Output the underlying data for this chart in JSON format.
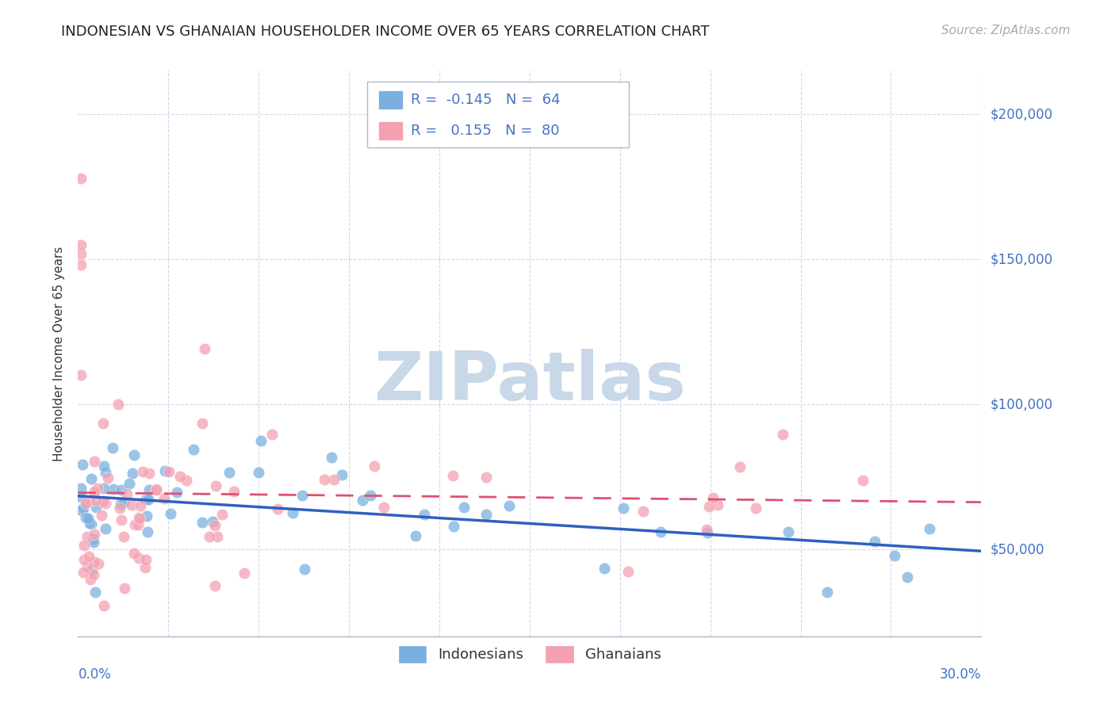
{
  "title": "INDONESIAN VS GHANAIAN HOUSEHOLDER INCOME OVER 65 YEARS CORRELATION CHART",
  "source": "Source: ZipAtlas.com",
  "ylabel": "Householder Income Over 65 years",
  "y_ticks": [
    50000,
    100000,
    150000,
    200000
  ],
  "y_tick_labels": [
    "$50,000",
    "$100,000",
    "$150,000",
    "$200,000"
  ],
  "xlim": [
    0.0,
    0.3
  ],
  "ylim": [
    20000,
    215000
  ],
  "indonesian_color": "#7ab0e0",
  "ghanaian_color": "#f4a0b0",
  "indonesian_trend_color": "#3060c0",
  "ghanaian_trend_color": "#e05070",
  "watermark": "ZIPatlas",
  "watermark_color": "#c8d8e8",
  "grid_color": "#d0d8e8",
  "spine_color": "#b0b8c8",
  "label_color": "#4472c4",
  "legend_r1": "R =  -0.145   N =  64",
  "legend_r2": "R =   0.155   N =  80",
  "bottom_label1": "Indonesians",
  "bottom_label2": "Ghanaians"
}
